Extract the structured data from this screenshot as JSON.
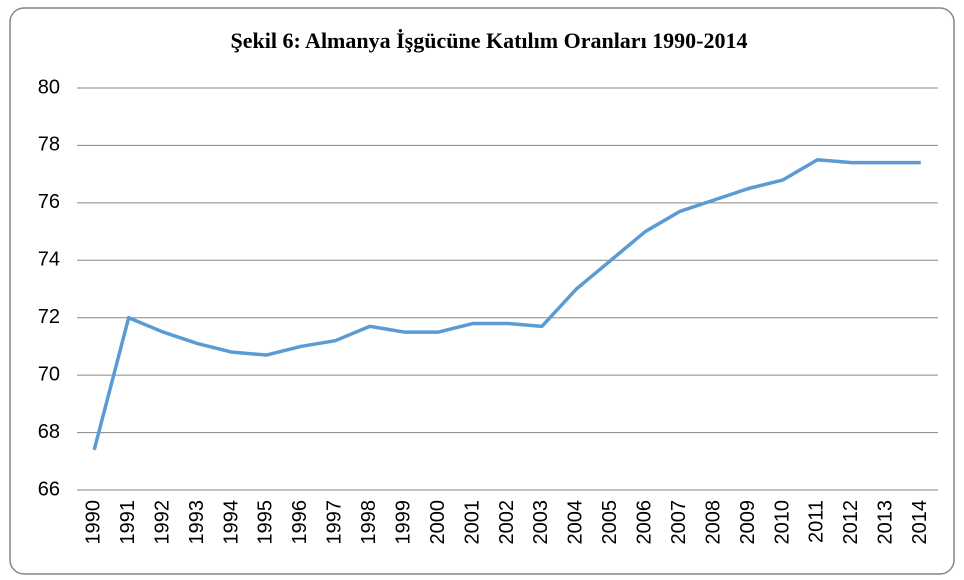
{
  "chart_data": {
    "type": "line",
    "title": "Şekil 6: Almanya İşgücüne Katılım Oranları 1990-2014",
    "categories": [
      "1990",
      "1991",
      "1992",
      "1993",
      "1994",
      "1995",
      "1996",
      "1997",
      "1998",
      "1999",
      "2000",
      "2001",
      "2002",
      "2003",
      "2004",
      "2005",
      "2006",
      "2007",
      "2008",
      "2009",
      "2010",
      "2011",
      "2012",
      "2013",
      "2014"
    ],
    "series": [
      {
        "name": null,
        "color": "#5b9bd5",
        "values": [
          67.4,
          72.0,
          71.5,
          71.1,
          70.8,
          70.7,
          71.0,
          71.2,
          71.7,
          71.5,
          71.5,
          71.8,
          71.8,
          71.7,
          73.0,
          74.0,
          75.0,
          75.7,
          76.1,
          76.5,
          76.8,
          77.5,
          77.4,
          77.4,
          77.4
        ]
      }
    ],
    "ylim": [
      66,
      80
    ],
    "yticks": [
      66,
      68,
      70,
      72,
      74,
      76,
      78,
      80
    ],
    "grid": true
  }
}
